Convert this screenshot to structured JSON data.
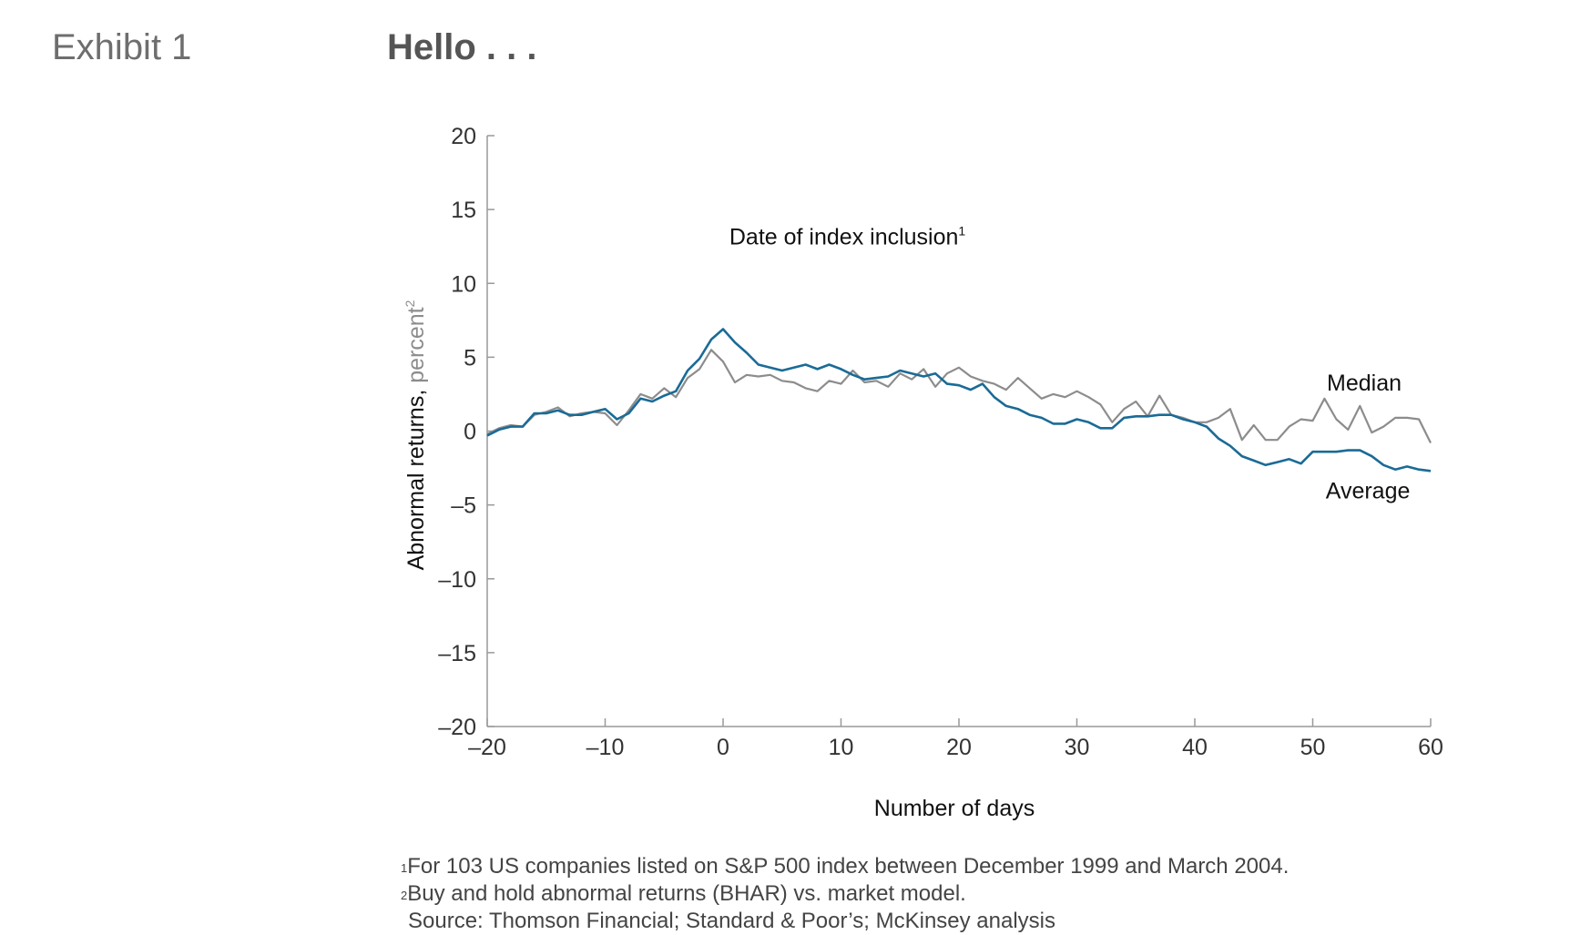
{
  "exhibit": {
    "label": "Exhibit 1",
    "title": "Hello . . ."
  },
  "colors": {
    "average": "#1a6b96",
    "median": "#8c8c8c",
    "axis": "#999999"
  },
  "chart_data": {
    "type": "line",
    "title": "Hello . . .",
    "xlabel": "Number of days",
    "ylabel": "Abnormal returns,",
    "ylabel_unit": "percent",
    "ylabel_note": "2",
    "xlim": [
      -20,
      60
    ],
    "ylim": [
      -20,
      20
    ],
    "xticks": [
      -20,
      -10,
      0,
      10,
      20,
      30,
      40,
      50,
      60
    ],
    "yticks": [
      20,
      15,
      10,
      5,
      0,
      -5,
      -10,
      -15,
      -20
    ],
    "xtick_labels": [
      "–20",
      "–10",
      "0",
      "10",
      "20",
      "30",
      "40",
      "50",
      "60"
    ],
    "ytick_labels": [
      "20",
      "15",
      "10",
      "5",
      "0",
      "–5",
      "–10",
      "–15",
      "–20"
    ],
    "grid": false,
    "annotation": {
      "text": "Date of index inclusion",
      "note": "1",
      "x": 12.5,
      "y": 13.2
    },
    "x": [
      -20,
      -19,
      -18,
      -17,
      -16,
      -15,
      -14,
      -13,
      -12,
      -11,
      -10,
      -9,
      -8,
      -7,
      -6,
      -5,
      -4,
      -3,
      -2,
      -1,
      0,
      1,
      2,
      3,
      4,
      5,
      6,
      7,
      8,
      9,
      10,
      11,
      12,
      13,
      14,
      15,
      16,
      17,
      18,
      19,
      20,
      21,
      22,
      23,
      24,
      25,
      26,
      27,
      28,
      29,
      30,
      31,
      32,
      33,
      34,
      35,
      36,
      37,
      38,
      39,
      40,
      41,
      42,
      43,
      44,
      45,
      46,
      47,
      48,
      49,
      50,
      51,
      52,
      53,
      54,
      55,
      56,
      57,
      58,
      59,
      60
    ],
    "series": [
      {
        "name": "Average",
        "label_x": 51.1,
        "label_y": -4.0,
        "values": [
          -0.3,
          0.1,
          0.3,
          0.3,
          1.2,
          1.2,
          1.4,
          1.1,
          1.1,
          1.3,
          1.5,
          0.8,
          1.2,
          2.2,
          2.0,
          2.4,
          2.7,
          4.1,
          4.9,
          6.2,
          6.9,
          6.0,
          5.3,
          4.5,
          4.3,
          4.1,
          4.3,
          4.5,
          4.2,
          4.5,
          4.2,
          3.8,
          3.5,
          3.6,
          3.7,
          4.1,
          3.9,
          3.7,
          3.9,
          3.2,
          3.1,
          2.8,
          3.2,
          2.3,
          1.7,
          1.5,
          1.1,
          0.9,
          0.5,
          0.5,
          0.8,
          0.6,
          0.2,
          0.2,
          0.9,
          1.0,
          1.0,
          1.1,
          1.1,
          0.8,
          0.6,
          0.3,
          -0.5,
          -1.0,
          -1.7,
          -2.0,
          -2.3,
          -2.1,
          -1.9,
          -2.2,
          -1.4,
          -1.4,
          -1.4,
          -1.3,
          -1.3,
          -1.7,
          -2.3,
          -2.6,
          -2.4,
          -2.6,
          -2.7
        ]
      },
      {
        "name": "Median",
        "label_x": 51.2,
        "label_y": 3.3,
        "values": [
          -0.2,
          0.2,
          0.4,
          0.3,
          1.1,
          1.3,
          1.6,
          1.0,
          1.2,
          1.3,
          1.2,
          0.4,
          1.4,
          2.5,
          2.2,
          2.9,
          2.3,
          3.6,
          4.2,
          5.5,
          4.7,
          3.3,
          3.8,
          3.7,
          3.8,
          3.4,
          3.3,
          2.9,
          2.7,
          3.4,
          3.2,
          4.1,
          3.3,
          3.4,
          3.0,
          3.9,
          3.5,
          4.2,
          3.0,
          3.9,
          4.3,
          3.7,
          3.4,
          3.2,
          2.8,
          3.6,
          2.9,
          2.2,
          2.5,
          2.3,
          2.7,
          2.3,
          1.8,
          0.6,
          1.5,
          2.0,
          1.0,
          2.4,
          1.1,
          0.9,
          0.6,
          0.6,
          0.9,
          1.5,
          -0.6,
          0.4,
          -0.6,
          -0.6,
          0.3,
          0.8,
          0.7,
          2.2,
          0.8,
          0.1,
          1.7,
          -0.1,
          0.3,
          0.9,
          0.9,
          0.8,
          -0.8
        ]
      }
    ]
  },
  "footnotes": {
    "note1_marker": "1",
    "note1": "For 103 US companies listed on S&P 500 index between December 1999 and March 2004.",
    "note2_marker": "2",
    "note2": "Buy and hold abnormal returns (BHAR) vs. market model.",
    "source": "Source: Thomson Financial; Standard & Poor’s; McKinsey analysis"
  }
}
